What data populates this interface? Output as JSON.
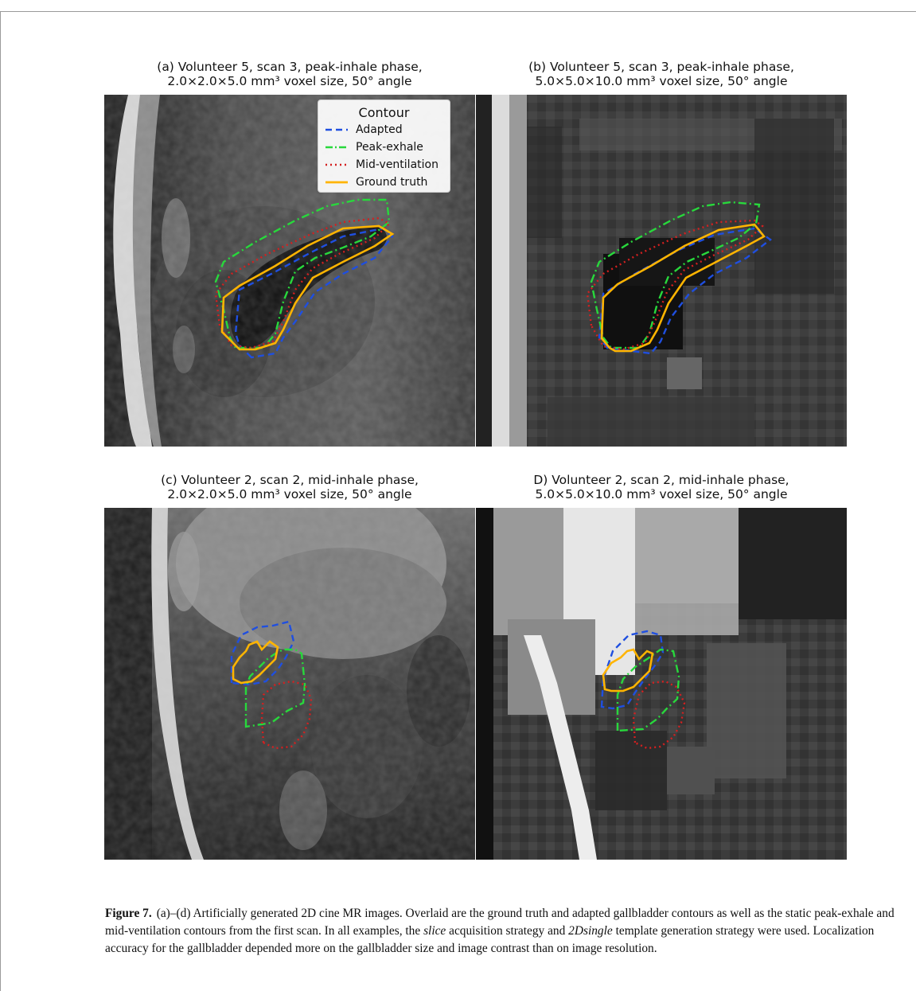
{
  "panels": [
    {
      "title_line1": "(a) Volunteer 5, scan 3, peak-inhale phase,",
      "title_line2": "2.0×2.0×5.0 mm³ voxel size, 50° angle"
    },
    {
      "title_line1": "(b) Volunteer 5, scan 3, peak-inhale phase,",
      "title_line2": "5.0×5.0×10.0 mm³ voxel size, 50° angle"
    },
    {
      "title_line1": "(c) Volunteer 2, scan 2, mid-inhale phase,",
      "title_line2": "2.0×2.0×5.0 mm³ voxel size, 50° angle"
    },
    {
      "title_line1": "D) Volunteer 2, scan 2, mid-inhale phase,",
      "title_line2": "5.0×5.0×10.0 mm³ voxel size, 50° angle"
    }
  ],
  "legend": {
    "title": "Contour",
    "items": [
      {
        "label": "Adapted",
        "color": "#1f4fe0",
        "style": "dashed"
      },
      {
        "label": "Peak-exhale",
        "color": "#28d83c",
        "style": "dashdot"
      },
      {
        "label": "Mid-ventilation",
        "color": "#d42020",
        "style": "dotted"
      },
      {
        "label": "Ground truth",
        "color": "#ffb400",
        "style": "solid"
      }
    ]
  },
  "caption": {
    "label": "Figure 7.",
    "part1": "(a)–(d) Artificially generated 2D cine MR images. Overlaid are the ground truth and adapted gallbladder contours as well as the static peak-exhale and mid-ventilation contours from the first scan. In all examples, the ",
    "em1": "slice",
    "part2": " acquisition strategy and ",
    "em2": "2Dsingle",
    "part3": " template generation strategy were used. Localization accuracy for the gallbladder depended more on the gallbladder size and image contrast than on image resolution."
  }
}
